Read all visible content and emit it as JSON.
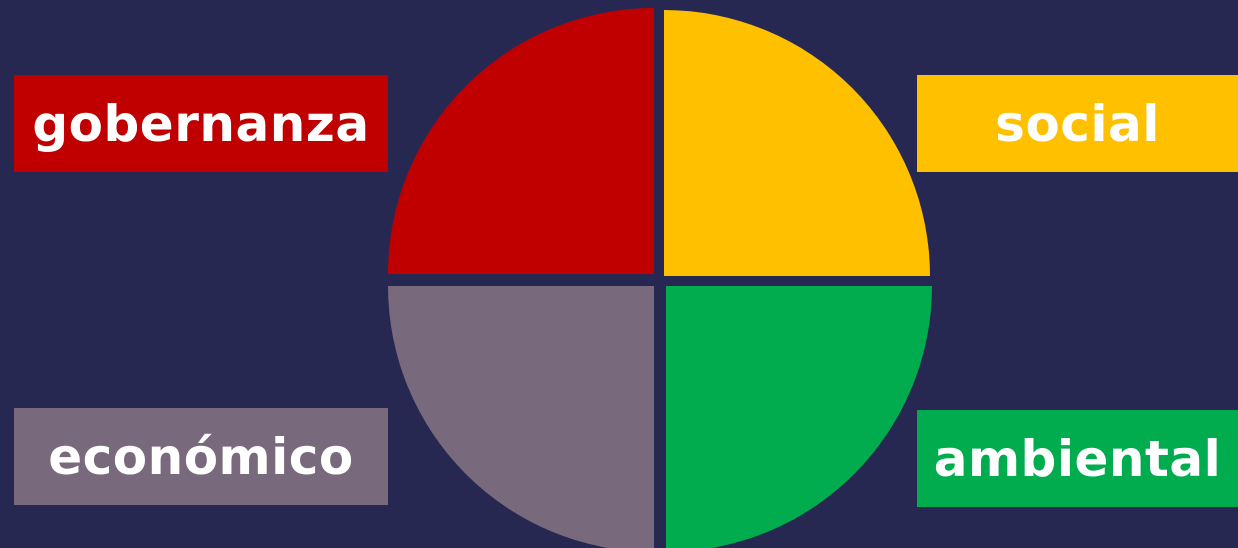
{
  "colors": {
    "background": "#262852",
    "gobernanza": "#c00000",
    "social": "#ffc000",
    "economico": "#786a7c",
    "ambiental": "#00ac4e"
  },
  "quadrants": {
    "gobernanza": {
      "label": "gobernanza"
    },
    "social": {
      "label": "social"
    },
    "economico": {
      "label": "económico"
    },
    "ambiental": {
      "label": "ambiental"
    }
  }
}
